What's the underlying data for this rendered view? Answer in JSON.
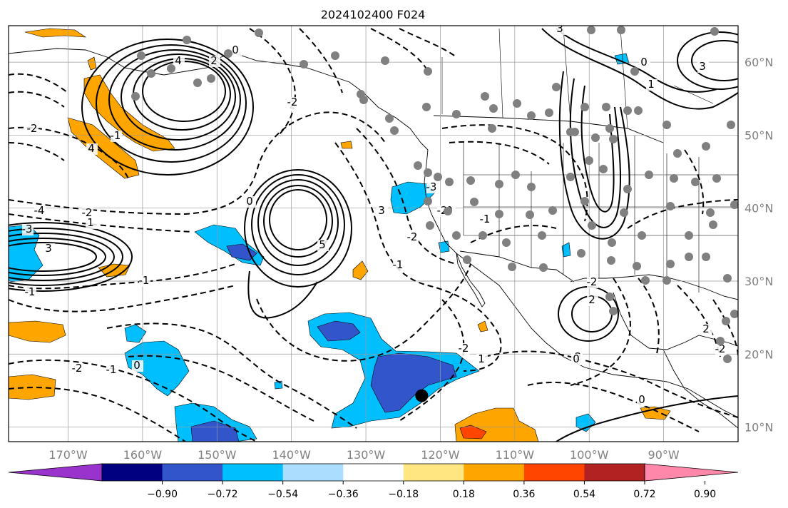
{
  "title": "2024102400 F024",
  "map": {
    "projection": "lat-lon",
    "lon_range_deg": [
      -178,
      -80
    ],
    "lat_range_deg": [
      8,
      65
    ],
    "grid": true,
    "lon_ticks": [
      {
        "lon": -170,
        "label": "170°W"
      },
      {
        "lon": -160,
        "label": "160°W"
      },
      {
        "lon": -150,
        "label": "150°W"
      },
      {
        "lon": -140,
        "label": "140°W"
      },
      {
        "lon": -130,
        "label": "130°W"
      },
      {
        "lon": -120,
        "label": "120°W"
      },
      {
        "lon": -110,
        "label": "110°W"
      },
      {
        "lon": -100,
        "label": "100°W"
      },
      {
        "lon": -90,
        "label": "90°W"
      }
    ],
    "lat_ticks": [
      {
        "lat": 60,
        "label": "60°N"
      },
      {
        "lat": 50,
        "label": "50°N"
      },
      {
        "lat": 40,
        "label": "40°N"
      },
      {
        "lat": 30,
        "label": "30°N"
      },
      {
        "lat": 20,
        "label": "20°N"
      },
      {
        "lat": 10,
        "label": "10°N"
      }
    ],
    "marker_point": {
      "lon": -122.5,
      "lat": 14.3
    },
    "contour_labels": [
      "5",
      "4",
      "4",
      "3",
      "2",
      "3",
      "0",
      "-2",
      "-1",
      "-2",
      "1",
      "0",
      "-3",
      "3",
      "-1",
      "-2",
      "-1",
      "0",
      "-2",
      "-1",
      "-2",
      "1",
      "-1",
      "2",
      "0",
      "-2",
      "-2",
      "2",
      "2",
      "-2",
      "0",
      "-1",
      "1",
      "-2",
      "0",
      "3",
      "-3",
      "-4",
      "-2",
      "0"
    ]
  },
  "colorbar": {
    "colors": [
      "#9933cc",
      "#000080",
      "#3355cc",
      "#00bfff",
      "#aaddff",
      "#ffffff",
      "#ffe680",
      "#ffa500",
      "#ff4500",
      "#b22222",
      "#ff88aa"
    ],
    "labels": [
      "−0.90",
      "−0.72",
      "−0.54",
      "−0.36",
      "−0.18",
      "0.18",
      "0.36",
      "0.54",
      "0.72",
      "0.90"
    ]
  },
  "colors": {
    "land_station_dot": "#808080",
    "marker": "#000000",
    "tick_label": "#808080",
    "grid": "#999999"
  }
}
